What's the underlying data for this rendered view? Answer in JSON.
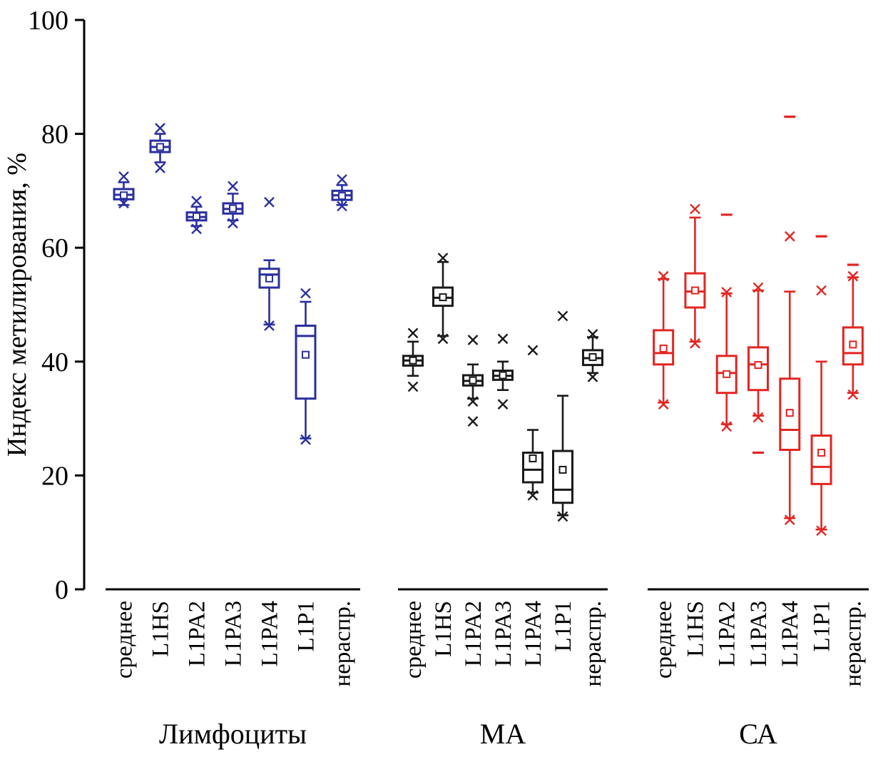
{
  "chart_data": {
    "type": "boxplot",
    "title": "",
    "ylabel": "Индекс метилирования, %",
    "xlabel": "",
    "ylim": [
      0,
      100
    ],
    "yticks": [
      0,
      20,
      40,
      60,
      80,
      100
    ],
    "categories": [
      "среднее",
      "L1HS",
      "L1PA2",
      "L1PA3",
      "L1PA4",
      "L1P1",
      "нераспр."
    ],
    "groups": [
      {
        "label": "Лимфоциты",
        "color": "#2a2f9e",
        "boxes": [
          {
            "whislo": 67.5,
            "q1": 68.5,
            "med": 69.3,
            "q3": 70.3,
            "whishi": 71.5,
            "mean": 69.2,
            "crosses": [
              72.5,
              67.8
            ],
            "dashes": []
          },
          {
            "whislo": 75.0,
            "q1": 76.8,
            "med": 77.7,
            "q3": 78.8,
            "whishi": 80.0,
            "mean": 77.7,
            "crosses": [
              81.0,
              74.0
            ],
            "dashes": []
          },
          {
            "whislo": 63.8,
            "q1": 64.8,
            "med": 65.4,
            "q3": 66.2,
            "whishi": 67.2,
            "mean": 65.5,
            "crosses": [
              68.2,
              63.3
            ],
            "dashes": []
          },
          {
            "whislo": 64.8,
            "q1": 66.0,
            "med": 66.8,
            "q3": 67.8,
            "whishi": 69.5,
            "mean": 66.9,
            "crosses": [
              70.8,
              64.3
            ],
            "dashes": []
          },
          {
            "whislo": 46.5,
            "q1": 53.0,
            "med": 55.3,
            "q3": 56.3,
            "whishi": 57.8,
            "mean": 54.6,
            "crosses": [
              68.0,
              46.3
            ],
            "dashes": []
          },
          {
            "whislo": 26.5,
            "q1": 33.5,
            "med": 44.5,
            "q3": 46.3,
            "whishi": 50.5,
            "mean": 41.2,
            "crosses": [
              52.0,
              26.3
            ],
            "dashes": []
          },
          {
            "whislo": 67.5,
            "q1": 68.4,
            "med": 69.2,
            "q3": 70.0,
            "whishi": 71.0,
            "mean": 69.1,
            "crosses": [
              72.0,
              67.3
            ],
            "dashes": []
          }
        ]
      },
      {
        "label": "МА",
        "color": "#1a1a1a",
        "boxes": [
          {
            "whislo": 37.5,
            "q1": 39.3,
            "med": 40.2,
            "q3": 41.0,
            "whishi": 43.5,
            "mean": 40.2,
            "crosses": [
              45.0,
              35.6
            ],
            "dashes": []
          },
          {
            "whislo": 44.5,
            "q1": 49.8,
            "med": 51.2,
            "q3": 53.0,
            "whishi": 57.5,
            "mean": 51.3,
            "crosses": [
              58.2,
              44.0
            ],
            "dashes": []
          },
          {
            "whislo": 33.5,
            "q1": 35.8,
            "med": 36.6,
            "q3": 37.6,
            "whishi": 39.5,
            "mean": 36.7,
            "crosses": [
              43.8,
              33.0,
              29.5
            ],
            "dashes": []
          },
          {
            "whislo": 35.0,
            "q1": 36.8,
            "med": 37.5,
            "q3": 38.4,
            "whishi": 40.0,
            "mean": 37.6,
            "crosses": [
              44.0,
              32.5
            ],
            "dashes": []
          },
          {
            "whislo": 17.0,
            "q1": 18.8,
            "med": 21.0,
            "q3": 24.0,
            "whishi": 28.0,
            "mean": 23.0,
            "crosses": [
              42.0,
              16.5
            ],
            "dashes": []
          },
          {
            "whislo": 13.0,
            "q1": 15.2,
            "med": 17.5,
            "q3": 24.3,
            "whishi": 34.0,
            "mean": 21.0,
            "crosses": [
              48.0,
              12.8
            ],
            "dashes": []
          },
          {
            "whislo": 38.0,
            "q1": 39.4,
            "med": 40.6,
            "q3": 42.0,
            "whishi": 44.3,
            "mean": 40.8,
            "crosses": [
              44.8,
              37.3
            ],
            "dashes": []
          }
        ]
      },
      {
        "label": "СА",
        "color": "#e22521",
        "boxes": [
          {
            "whislo": 32.8,
            "q1": 39.5,
            "med": 41.5,
            "q3": 45.5,
            "whishi": 54.5,
            "mean": 42.3,
            "crosses": [
              55.0,
              32.5
            ],
            "dashes": []
          },
          {
            "whislo": 43.5,
            "q1": 49.5,
            "med": 52.3,
            "q3": 55.5,
            "whishi": 65.3,
            "mean": 52.5,
            "crosses": [
              66.8,
              43.2
            ],
            "dashes": []
          },
          {
            "whislo": 29.0,
            "q1": 34.5,
            "med": 38.0,
            "q3": 41.0,
            "whishi": 52.0,
            "mean": 37.8,
            "crosses": [
              52.2,
              28.6
            ],
            "dashes": [
              65.8
            ]
          },
          {
            "whislo": 30.5,
            "q1": 35.0,
            "med": 39.5,
            "q3": 42.5,
            "whishi": 52.5,
            "mean": 39.4,
            "crosses": [
              53.0,
              30.2
            ],
            "dashes": [
              24.0
            ]
          },
          {
            "whislo": 12.5,
            "q1": 24.5,
            "med": 28.0,
            "q3": 37.0,
            "whishi": 52.3,
            "mean": 31.0,
            "crosses": [
              62.0,
              12.2
            ],
            "dashes": [
              83.0
            ]
          },
          {
            "whislo": 10.5,
            "q1": 18.5,
            "med": 21.5,
            "q3": 27.0,
            "whishi": 40.0,
            "mean": 24.0,
            "crosses": [
              52.5,
              10.3
            ],
            "dashes": [
              62.0
            ]
          },
          {
            "whislo": 34.5,
            "q1": 39.5,
            "med": 41.5,
            "q3": 46.0,
            "whishi": 54.8,
            "mean": 43.0,
            "crosses": [
              55.0,
              34.2
            ],
            "dashes": [
              57.0
            ]
          }
        ]
      }
    ]
  }
}
